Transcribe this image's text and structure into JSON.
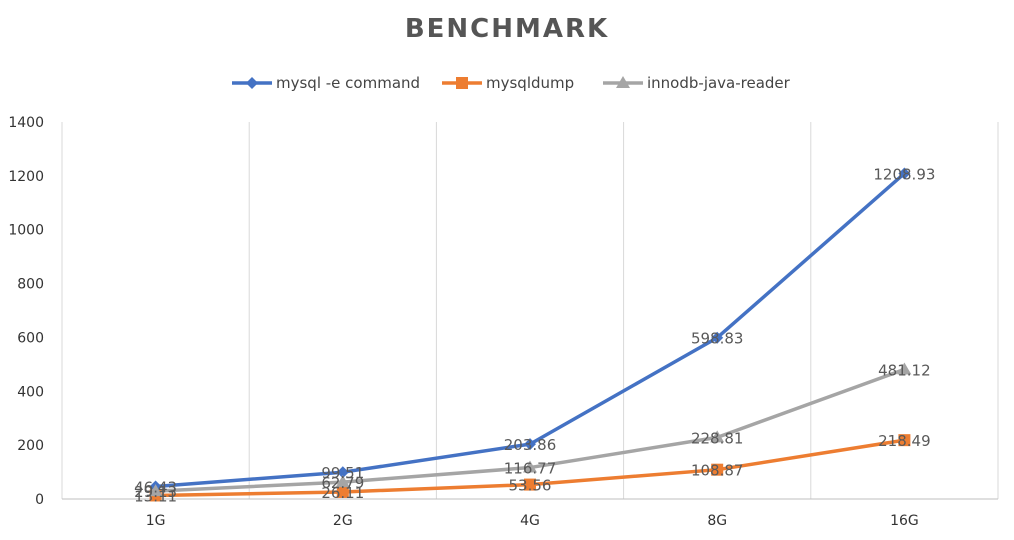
{
  "chart_data": {
    "type": "line",
    "title": "BENCHMARK",
    "xlabel": "",
    "ylabel": "",
    "categories": [
      "1G",
      "2G",
      "4G",
      "8G",
      "16G"
    ],
    "ylim": [
      0,
      1400
    ],
    "yticks": [
      0,
      200,
      400,
      600,
      800,
      1000,
      1200,
      1400
    ],
    "grid": "vertical",
    "legend_position": "top",
    "series": [
      {
        "name": "mysql -e command",
        "color": "#4472C4",
        "marker": "diamond",
        "values": [
          46.43,
          99.51,
          203.86,
          598.83,
          1208.93
        ],
        "labels": [
          "46.43",
          "99.51",
          "203.86",
          "598.83",
          "1208.93"
        ]
      },
      {
        "name": "mysqldump",
        "color": "#ED7D31",
        "marker": "square",
        "values": [
          13.11,
          26.11,
          53.56,
          108.87,
          218.49
        ],
        "labels": [
          "13.11",
          "26.11",
          "53.56",
          "108.87",
          "218.49"
        ]
      },
      {
        "name": "innodb-java-reader",
        "color": "#A5A5A5",
        "marker": "triangle",
        "values": [
          29.13,
          62.79,
          116.77,
          228.81,
          481.12
        ],
        "labels": [
          "29.13",
          "62.79",
          "116.77",
          "228.81",
          "481.12"
        ]
      }
    ]
  }
}
